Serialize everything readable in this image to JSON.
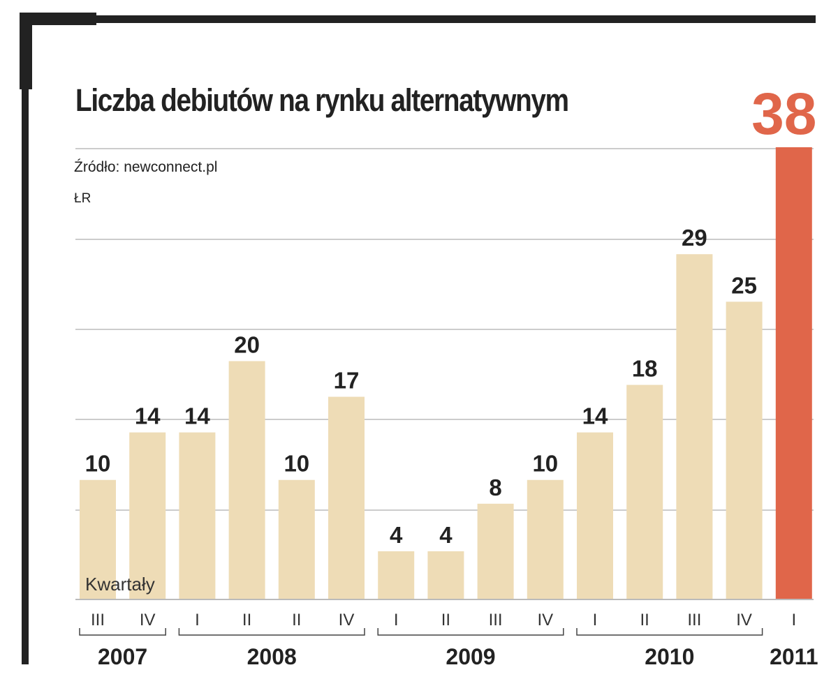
{
  "title": "Liczba debiutów na rynku alternatywnym",
  "source": "Źródło: newconnect.pl",
  "author": "ŁR",
  "colors": {
    "bar": "#eedcb6",
    "highlight": "#e0664a",
    "grid": "#cccccc",
    "frame": "#222222"
  },
  "chart_data": {
    "type": "bar",
    "title": "Liczba debiutów na rynku alternatywnym",
    "xlabel": "Kwartały",
    "ylabel": "",
    "ylim": [
      0,
      38
    ],
    "grid": true,
    "categories": [
      "III",
      "IV",
      "I",
      "II",
      "II",
      "IV",
      "I",
      "II",
      "III",
      "IV",
      "I",
      "II",
      "III",
      "IV",
      "I"
    ],
    "values": [
      10,
      14,
      14,
      20,
      10,
      17,
      4,
      4,
      8,
      10,
      14,
      18,
      29,
      25,
      38
    ],
    "value_labels": [
      "10",
      "14",
      "14",
      "20",
      "10",
      "17",
      "4",
      "4",
      "8",
      "10",
      "14",
      "18",
      "29",
      "25",
      "38"
    ],
    "highlight_index": 14,
    "years": [
      {
        "label": "2007",
        "from": 0,
        "to": 1
      },
      {
        "label": "2008",
        "from": 2,
        "to": 5
      },
      {
        "label": "2009",
        "from": 6,
        "to": 9
      },
      {
        "label": "2010",
        "from": 10,
        "to": 13
      },
      {
        "label": "2011",
        "from": 14,
        "to": 14
      }
    ]
  }
}
